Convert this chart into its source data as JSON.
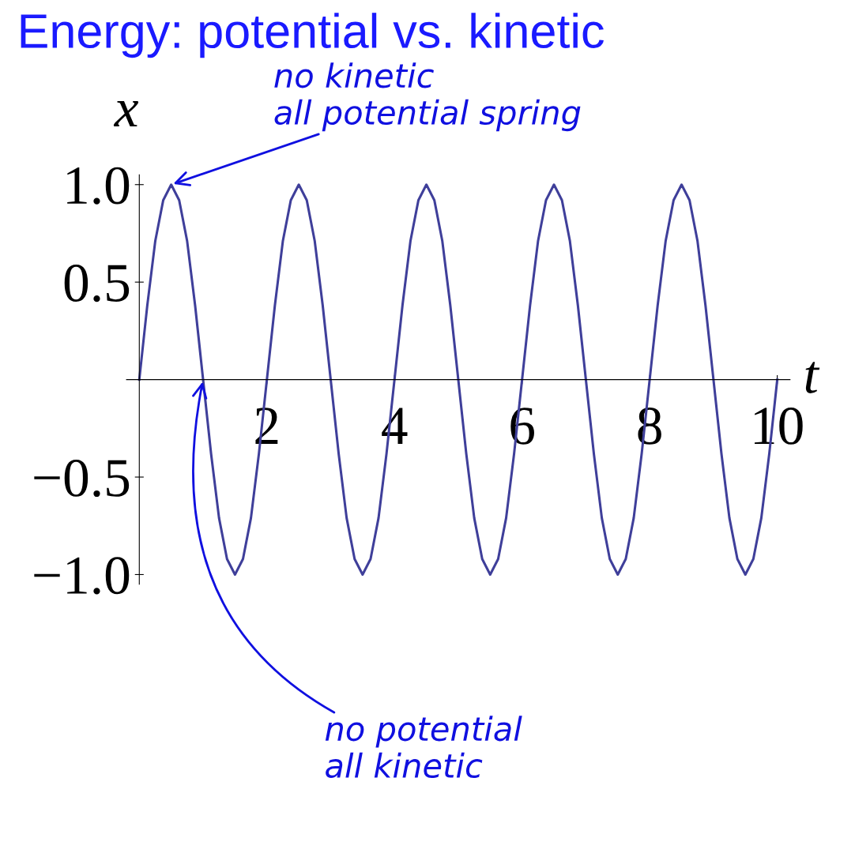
{
  "chart_data": {
    "type": "line",
    "title": "Energy: potential vs. kinetic",
    "xlabel": "t",
    "ylabel": "x",
    "x": [
      0,
      0.125,
      0.25,
      0.375,
      0.5,
      0.625,
      0.75,
      0.875,
      1,
      1.125,
      1.25,
      1.375,
      1.5,
      1.625,
      1.75,
      1.875,
      2,
      2.125,
      2.25,
      2.375,
      2.5,
      2.625,
      2.75,
      2.875,
      3,
      3.125,
      3.25,
      3.375,
      3.5,
      3.625,
      3.75,
      3.875,
      4,
      4.125,
      4.25,
      4.375,
      4.5,
      4.625,
      4.75,
      4.875,
      5,
      5.125,
      5.25,
      5.375,
      5.5,
      5.625,
      5.75,
      5.875,
      6,
      6.125,
      6.25,
      6.375,
      6.5,
      6.625,
      6.75,
      6.875,
      7,
      7.125,
      7.25,
      7.375,
      7.5,
      7.625,
      7.75,
      7.875,
      8,
      8.125,
      8.25,
      8.375,
      8.5,
      8.625,
      8.75,
      8.875,
      9,
      9.125,
      9.25,
      9.375,
      9.5,
      9.625,
      9.75,
      9.875,
      10
    ],
    "series": [
      {
        "color": "#3f3f9a",
        "values": [
          0,
          0.38,
          0.71,
          0.92,
          1,
          0.92,
          0.71,
          0.38,
          0,
          -0.38,
          -0.71,
          -0.92,
          -1,
          -0.92,
          -0.71,
          -0.38,
          0,
          0.38,
          0.71,
          0.92,
          1,
          0.92,
          0.71,
          0.38,
          0,
          -0.38,
          -0.71,
          -0.92,
          -1,
          -0.92,
          -0.71,
          -0.38,
          0,
          0.38,
          0.71,
          0.92,
          1,
          0.92,
          0.71,
          0.38,
          0,
          -0.38,
          -0.71,
          -0.92,
          -1,
          -0.92,
          -0.71,
          -0.38,
          0,
          0.38,
          0.71,
          0.92,
          1,
          0.92,
          0.71,
          0.38,
          0,
          -0.38,
          -0.71,
          -0.92,
          -1,
          -0.92,
          -0.71,
          -0.38,
          0,
          0.38,
          0.71,
          0.92,
          1,
          0.92,
          0.71,
          0.38,
          0,
          -0.38,
          -0.71,
          -0.92,
          -1,
          -0.92,
          -0.71,
          -0.38,
          0
        ]
      }
    ],
    "xlim": [
      -0.2,
      10.2
    ],
    "ylim": [
      -1.05,
      1.05
    ],
    "xticks": [
      2,
      4,
      6,
      8,
      10
    ],
    "yticks": [
      {
        "value": -1.0,
        "label": "−1.0"
      },
      {
        "value": -0.5,
        "label": "−0.5"
      },
      {
        "value": 0.5,
        "label": "0.5"
      },
      {
        "value": 1.0,
        "label": "1.0"
      }
    ],
    "grid": false,
    "legend": false,
    "marker": "none",
    "line_style": "solid",
    "annotations": [
      {
        "text": "no kinetic\nall potential spring",
        "x": 0.5,
        "y": 1.0
      },
      {
        "text": "no potential\nall kinetic",
        "x": 1.0,
        "y": 0.0
      }
    ]
  }
}
